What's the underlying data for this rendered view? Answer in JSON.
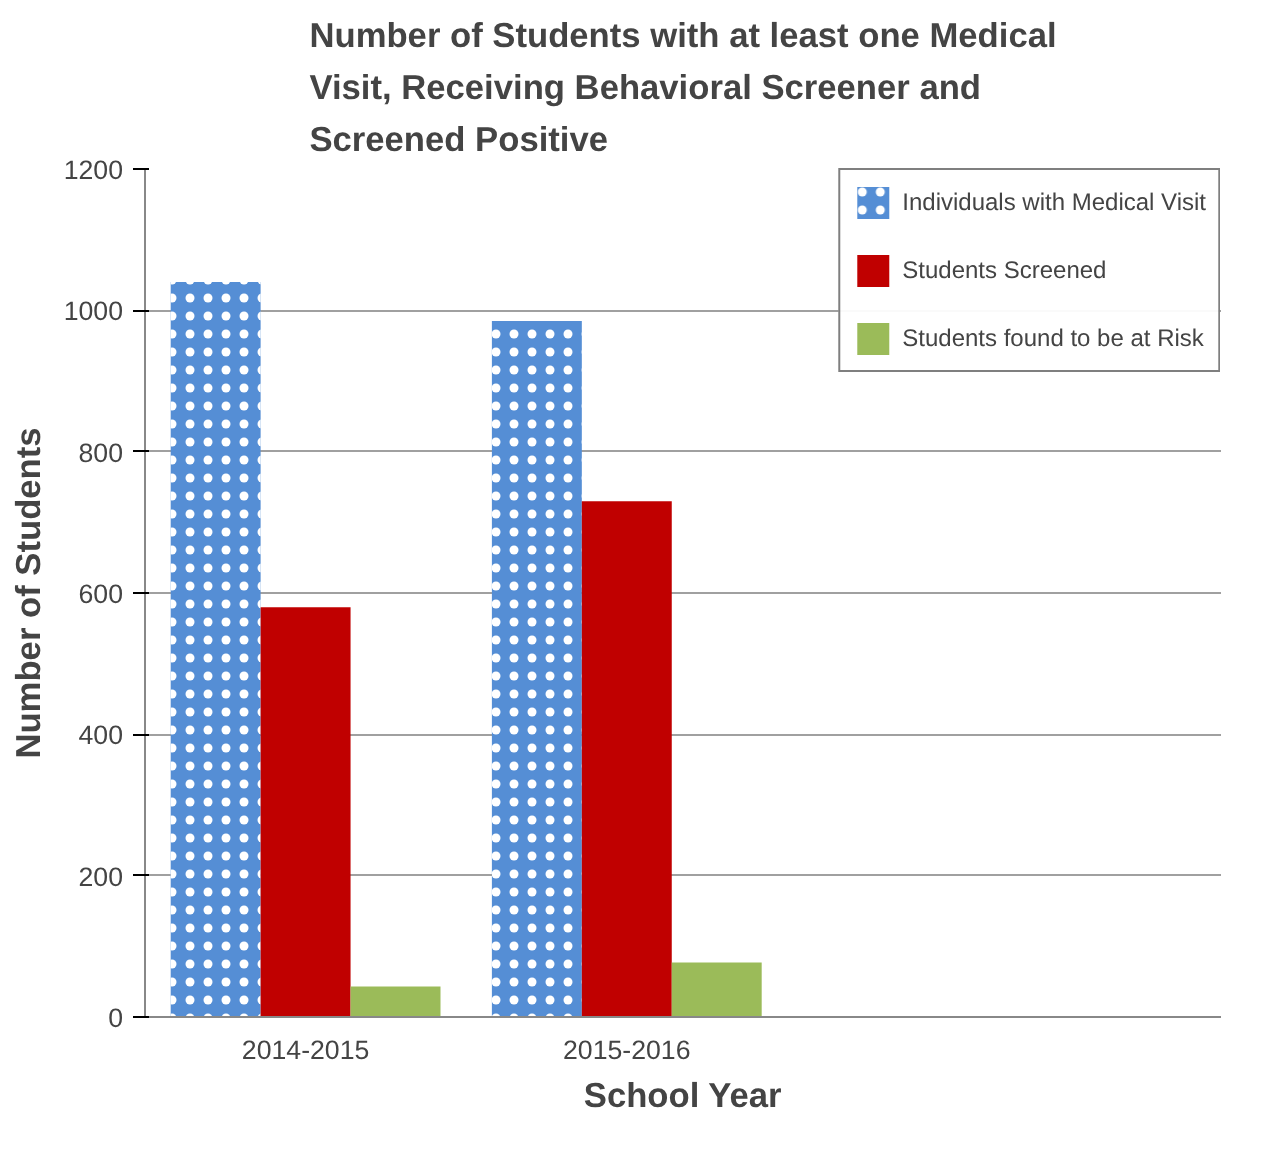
{
  "chart_data": {
    "type": "bar",
    "title": "Number of Students with at least one Medical Visit,  Receiving Behavioral Screener and Screened Positive",
    "xlabel": "School Year",
    "ylabel": "Number of Students",
    "categories": [
      "2014-2015",
      "2015-2016"
    ],
    "series": [
      {
        "name": "Individuals with Medical Visit",
        "color": "#558ed5",
        "values": [
          1040,
          985
        ]
      },
      {
        "name": "Students Screened",
        "color": "#c00000",
        "values": [
          580,
          730
        ]
      },
      {
        "name": "Students found to be at Risk",
        "color": "#9bbb59",
        "values": [
          43,
          77
        ]
      }
    ],
    "ylim": [
      0,
      1200
    ],
    "yticks": [
      0,
      200,
      400,
      600,
      800,
      1000,
      1200
    ],
    "grid": "y",
    "legend": "right"
  }
}
